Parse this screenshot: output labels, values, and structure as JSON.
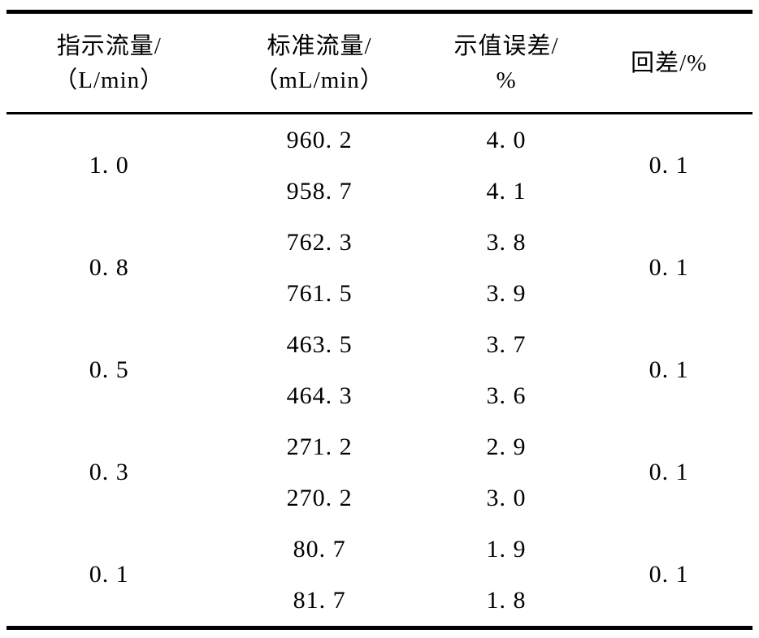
{
  "table": {
    "headers": [
      {
        "line1": "指示流量/",
        "line2": "（L/min）"
      },
      {
        "line1": "标准流量/",
        "line2": "（mL/min）"
      },
      {
        "line1": "示值误差/",
        "line2": "%"
      },
      {
        "line1": "回差/%",
        "line2": ""
      }
    ],
    "groups": [
      {
        "indicated": "1. 0",
        "readings": [
          {
            "standard": "960. 2",
            "error": "4. 0"
          },
          {
            "standard": "958. 7",
            "error": "4. 1"
          }
        ],
        "hysteresis": "0. 1"
      },
      {
        "indicated": "0. 8",
        "readings": [
          {
            "standard": "762. 3",
            "error": "3. 8"
          },
          {
            "standard": "761. 5",
            "error": "3. 9"
          }
        ],
        "hysteresis": "0. 1"
      },
      {
        "indicated": "0. 5",
        "readings": [
          {
            "standard": "463. 5",
            "error": "3. 7"
          },
          {
            "standard": "464. 3",
            "error": "3. 6"
          }
        ],
        "hysteresis": "0. 1"
      },
      {
        "indicated": "0. 3",
        "readings": [
          {
            "standard": "271. 2",
            "error": "2. 9"
          },
          {
            "standard": "270. 2",
            "error": "3. 0"
          }
        ],
        "hysteresis": "0. 1"
      },
      {
        "indicated": "0. 1",
        "readings": [
          {
            "standard": "80. 7",
            "error": "1. 9"
          },
          {
            "standard": "81. 7",
            "error": "1. 8"
          }
        ],
        "hysteresis": "0. 1"
      }
    ]
  },
  "chart_data": {
    "type": "table",
    "columns": [
      "指示流量/（L/min）",
      "标准流量/（mL/min）",
      "示值误差/%",
      "回差/%"
    ],
    "rows": [
      [
        1.0,
        960.2,
        4.0,
        0.1
      ],
      [
        1.0,
        958.7,
        4.1,
        0.1
      ],
      [
        0.8,
        762.3,
        3.8,
        0.1
      ],
      [
        0.8,
        761.5,
        3.9,
        0.1
      ],
      [
        0.5,
        463.5,
        3.7,
        0.1
      ],
      [
        0.5,
        464.3,
        3.6,
        0.1
      ],
      [
        0.3,
        271.2,
        2.9,
        0.1
      ],
      [
        0.3,
        270.2,
        3.0,
        0.1
      ],
      [
        0.1,
        80.7,
        1.9,
        0.1
      ],
      [
        0.1,
        81.7,
        1.8,
        0.1
      ]
    ]
  }
}
